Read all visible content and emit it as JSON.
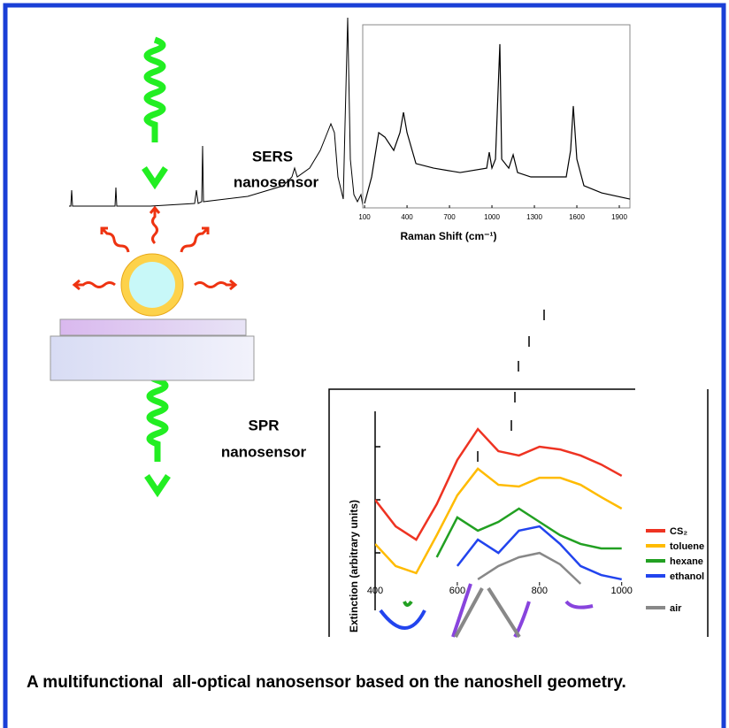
{
  "labels": {
    "sers": [
      "SERS",
      "nanosensor"
    ],
    "spr": [
      "SPR",
      "nanosensor"
    ]
  },
  "caption": "A multifunctional  all-optical nanosensor based on the nanoshell geometry.",
  "chart_data": [
    {
      "type": "line",
      "xlabel": "Raman Shift (cm⁻¹)",
      "xlim": [
        87,
        1975
      ],
      "xticks": [
        100,
        400,
        700,
        1000,
        1300,
        1600,
        1900
      ],
      "ylim": [
        0,
        100
      ],
      "color": "#000000",
      "x": [
        100,
        150,
        200,
        244,
        306,
        350,
        375,
        400,
        463,
        588,
        775,
        963,
        981,
        1000,
        1025,
        1056,
        1069,
        1119,
        1150,
        1181,
        1275,
        1400,
        1525,
        1556,
        1575,
        1600,
        1650,
        1775,
        1975
      ],
      "values": [
        2.4,
        16.9,
        41.1,
        38.6,
        31.4,
        41.1,
        52.2,
        41.1,
        24.2,
        21.7,
        19.3,
        21.7,
        30.4,
        21.7,
        26.6,
        89.4,
        26.6,
        21.7,
        29,
        19.3,
        16.9,
        16.9,
        16.9,
        31.4,
        55.6,
        26.6,
        12.1,
        8.2,
        4.8
      ]
    },
    {
      "type": "line",
      "ylabel": "Extinction (arbitrary units)",
      "xlim": [
        400,
        1020
      ],
      "xticks": [
        400,
        600,
        800,
        1000
      ],
      "ylim": [
        0,
        100
      ],
      "x": [
        400,
        450,
        500,
        550,
        600,
        650,
        700,
        750,
        800,
        850,
        900,
        950,
        1000
      ],
      "series": [
        {
          "name": "CS₂",
          "color": "#ee3322",
          "values": [
            48.7,
            33.3,
            25.6,
            46.2,
            71.8,
            89.7,
            76.9,
            74.4,
            79.5,
            77.9,
            74.4,
            69.2,
            62.6
          ]
        },
        {
          "name": "toluene",
          "color": "#ffbb00",
          "values": [
            23.1,
            10.3,
            6.2,
            28.2,
            51.3,
            66.7,
            57.4,
            56.4,
            61.5,
            61.5,
            57.4,
            50.3,
            43.6
          ]
        },
        {
          "name": "hexane",
          "color": "#22a022",
          "values": [
            null,
            null,
            null,
            15.4,
            38.5,
            30.8,
            35.9,
            43.6,
            35.9,
            28.2,
            23.1,
            20.5,
            20.5
          ]
        },
        {
          "name": "ethanol",
          "color": "#2244ee",
          "values": [
            null,
            null,
            null,
            null,
            10.3,
            25.6,
            17.9,
            30.8,
            33.3,
            23.1,
            10.3,
            5.1,
            2.6
          ]
        },
        {
          "name": "air",
          "color": "#888888",
          "values": [
            null,
            null,
            null,
            null,
            null,
            2.6,
            10.3,
            15.4,
            17.9,
            11.3,
            0,
            null,
            null
          ]
        }
      ]
    }
  ]
}
